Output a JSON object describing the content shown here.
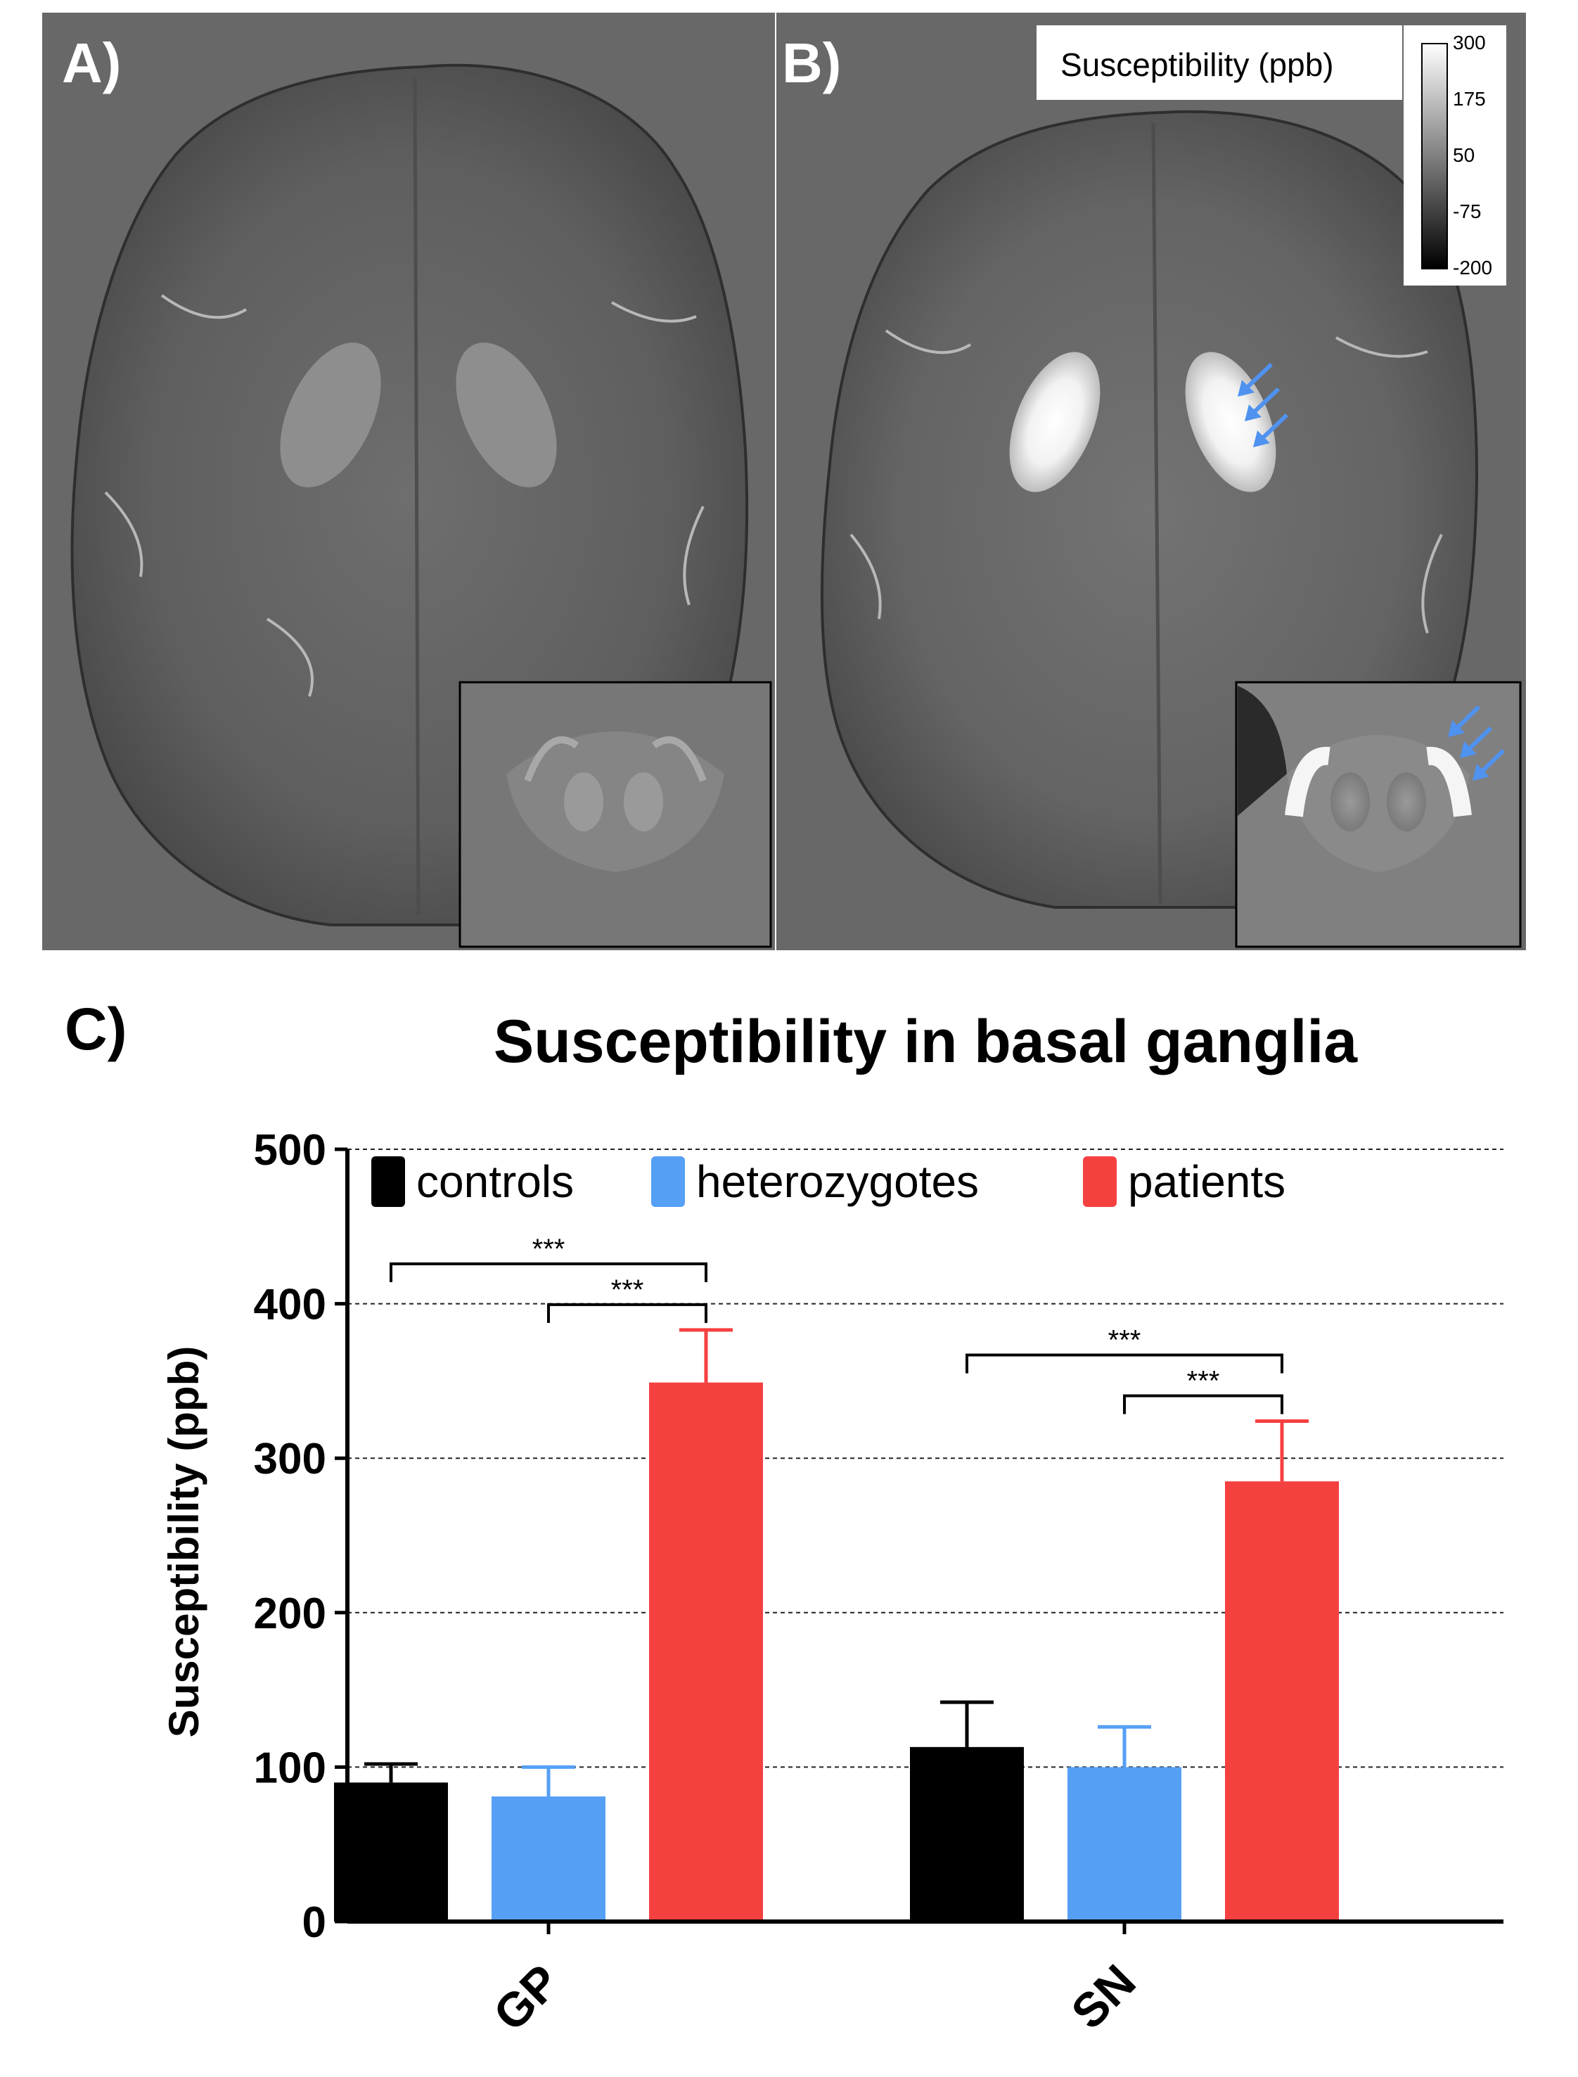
{
  "panels": {
    "a": {
      "label": "A)"
    },
    "b": {
      "label": "B)"
    },
    "c": {
      "label": "C)"
    }
  },
  "colorbar": {
    "title": "Susceptibility (ppb)",
    "ticks": [
      "300",
      "175",
      "50",
      "-75",
      "-200"
    ]
  },
  "colors": {
    "controls": "#000000",
    "heterozygotes": "#55a0f5",
    "patients": "#f54040",
    "arrow": "#4f92f0",
    "mri_background": "#686868"
  },
  "chart_data": {
    "type": "bar",
    "title": "Susceptibility in basal ganglia",
    "ylabel": "Susceptibility (ppb)",
    "xlabel": "",
    "ylim": [
      0,
      500
    ],
    "yticks": [
      0,
      100,
      200,
      300,
      400,
      500
    ],
    "grid": true,
    "legend_position": "top",
    "categories": [
      "GP",
      "SN"
    ],
    "series": [
      {
        "name": "controls",
        "color": "#000000",
        "values": [
          90,
          113
        ],
        "errors": [
          12,
          29
        ]
      },
      {
        "name": "heterozygotes",
        "color": "#55a0f5",
        "values": [
          81,
          100
        ],
        "errors": [
          19,
          26
        ]
      },
      {
        "name": "patients",
        "color": "#f54040",
        "values": [
          349,
          285
        ],
        "errors": [
          34,
          39
        ]
      }
    ],
    "significance": [
      {
        "category": "GP",
        "from": "controls",
        "to": "patients",
        "label": "***",
        "level": 1
      },
      {
        "category": "GP",
        "from": "heterozygotes",
        "to": "patients",
        "label": "***",
        "level": 0
      },
      {
        "category": "SN",
        "from": "controls",
        "to": "patients",
        "label": "***",
        "level": 1
      },
      {
        "category": "SN",
        "from": "heterozygotes",
        "to": "patients",
        "label": "***",
        "level": 0
      }
    ]
  }
}
